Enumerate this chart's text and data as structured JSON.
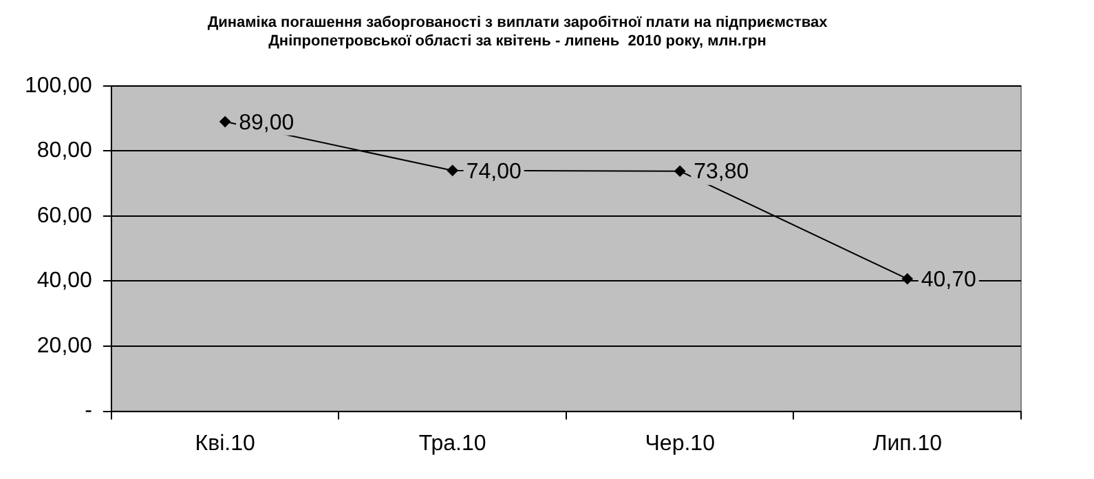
{
  "chart_data": {
    "type": "line",
    "title": "Динаміка погашення заборгованості з виплати заробітної плати на підприємствах\nДніпропетровської області за квітень - липень  2010 року, млн.грн",
    "categories": [
      "Кві.10",
      "Тра.10",
      "Чер.10",
      "Лип.10"
    ],
    "series": [
      {
        "color": "#000000",
        "values": [
          89,
          74,
          73.8,
          40.7
        ],
        "value_labels": [
          "89,00",
          "74,00",
          "73,80",
          "40,70"
        ]
      }
    ],
    "ylim": [
      0,
      100
    ],
    "yticks": [
      {
        "value": 0,
        "label": "-"
      },
      {
        "value": 20,
        "label": "20,00"
      },
      {
        "value": 40,
        "label": "40,00"
      },
      {
        "value": 60,
        "label": "60,00"
      },
      {
        "value": 80,
        "label": "80,00"
      },
      {
        "value": 100,
        "label": "100,00"
      }
    ],
    "grid": "y",
    "legend": false,
    "marker": "diamond",
    "line_style": "solid"
  }
}
